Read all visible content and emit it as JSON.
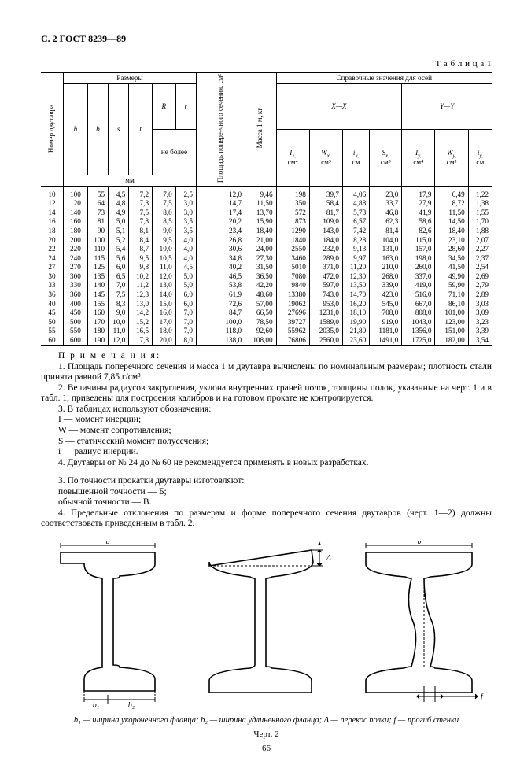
{
  "page": {
    "header": "С. 2 ГОСТ 8239—89",
    "table_label": "Т а б л и ц а  1",
    "fig_caption": "b₁ — ширина укороченного фланца; b₂ — ширина удлиненного фланца; Δ — перекос полки; f — прогиб стенки",
    "fig_no": "Черт. 2",
    "page_no": "66"
  },
  "table_head": {
    "num": "Номер двутавра",
    "dims": "Размеры",
    "h": "h",
    "b": "b",
    "s": "s",
    "t": "t",
    "R": "R",
    "r": "r",
    "not_more": "не более",
    "mm": "мм",
    "area": "Площадь попере-чного сечения, см²",
    "mass": "Масса 1 м, кг",
    "ref": "Справочные значения для осей",
    "xx": "X—X",
    "yy": "Y—Y",
    "Ix": "I",
    "Ix_u": "x,",
    "Ix_s": "см⁴",
    "Wx": "W",
    "Wx_u": "x,",
    "Wx_s": "см³",
    "ix": "i",
    "ix_u": "x,",
    "ix_s": "см",
    "Sx": "S",
    "Sx_u": "x,",
    "Sx_s": "см³",
    "Iy": "I",
    "Iy_u": "y,",
    "Iy_s": "см⁴",
    "Wy": "W",
    "Wy_u": "y,",
    "Wy_s": "см³",
    "iy": "i",
    "iy_u": "y,",
    "iy_s": "см"
  },
  "rows": [
    [
      "10",
      "100",
      "55",
      "4,5",
      "7,2",
      "7,0",
      "2,5",
      "12,0",
      "9,46",
      "198",
      "39,7",
      "4,06",
      "23,0",
      "17,9",
      "6,49",
      "1,22"
    ],
    [
      "12",
      "120",
      "64",
      "4,8",
      "7,3",
      "7,5",
      "3,0",
      "14,7",
      "11,50",
      "350",
      "58,4",
      "4,88",
      "33,7",
      "27,9",
      "8,72",
      "1,38"
    ],
    [
      "14",
      "140",
      "73",
      "4,9",
      "7,5",
      "8,0",
      "3,0",
      "17,4",
      "13,70",
      "572",
      "81,7",
      "5,73",
      "46,8",
      "41,9",
      "11,50",
      "1,55"
    ],
    [
      "16",
      "160",
      "81",
      "5,0",
      "7,8",
      "8,5",
      "3,5",
      "20,2",
      "15,90",
      "873",
      "109,0",
      "6,57",
      "62,3",
      "58,6",
      "14,50",
      "1,70"
    ],
    [
      "18",
      "180",
      "90",
      "5,1",
      "8,1",
      "9,0",
      "3,5",
      "23,4",
      "18,40",
      "1290",
      "143,0",
      "7,42",
      "81,4",
      "82,6",
      "18,40",
      "1,88"
    ],
    [
      "20",
      "200",
      "100",
      "5,2",
      "8,4",
      "9,5",
      "4,0",
      "26,8",
      "21,00",
      "1840",
      "184,0",
      "8,28",
      "104,0",
      "115,0",
      "23,10",
      "2,07"
    ],
    [
      "22",
      "220",
      "110",
      "5,4",
      "8,7",
      "10,0",
      "4,0",
      "30,6",
      "24,00",
      "2550",
      "232,0",
      "9,13",
      "131,0",
      "157,0",
      "28,60",
      "2,27"
    ],
    [
      "24",
      "240",
      "115",
      "5,6",
      "9,5",
      "10,5",
      "4,0",
      "34,8",
      "27,30",
      "3460",
      "289,0",
      "9,97",
      "163,0",
      "198,0",
      "34,50",
      "2,37"
    ],
    [
      "27",
      "270",
      "125",
      "6,0",
      "9,8",
      "11,0",
      "4,5",
      "40,2",
      "31,50",
      "5010",
      "371,0",
      "11,20",
      "210,0",
      "260,0",
      "41,50",
      "2,54"
    ],
    [
      "30",
      "300",
      "135",
      "6,5",
      "10,2",
      "12,0",
      "5,0",
      "46,5",
      "36,50",
      "7080",
      "472,0",
      "12,30",
      "268,0",
      "337,0",
      "49,90",
      "2,69"
    ],
    [
      "33",
      "330",
      "140",
      "7,0",
      "11,2",
      "13,0",
      "5,0",
      "53,8",
      "42,20",
      "9840",
      "597,0",
      "13,50",
      "339,0",
      "419,0",
      "59,90",
      "2,79"
    ],
    [
      "36",
      "360",
      "145",
      "7,5",
      "12,3",
      "14,0",
      "6,0",
      "61,9",
      "48,60",
      "13380",
      "743,0",
      "14,70",
      "423,0",
      "516,0",
      "71,10",
      "2,89"
    ],
    [
      "40",
      "400",
      "155",
      "8,3",
      "13,0",
      "15,0",
      "6,0",
      "72,6",
      "57,00",
      "19062",
      "953,0",
      "16,20",
      "545,0",
      "667,0",
      "86,10",
      "3,03"
    ],
    [
      "45",
      "450",
      "160",
      "9,0",
      "14,2",
      "16,0",
      "7,0",
      "84,7",
      "66,50",
      "27696",
      "1231,0",
      "18,10",
      "708,0",
      "808,0",
      "101,00",
      "3,09"
    ],
    [
      "50",
      "500",
      "170",
      "10,0",
      "15,2",
      "17,0",
      "7,0",
      "100,0",
      "78,50",
      "39727",
      "1589,0",
      "19,90",
      "919,0",
      "1043,0",
      "123,00",
      "3,23"
    ],
    [
      "55",
      "550",
      "180",
      "11,0",
      "16,5",
      "18,0",
      "7,0",
      "118,0",
      "92,60",
      "55962",
      "2035,0",
      "21,80",
      "1181,0",
      "1356,0",
      "151,00",
      "3,39"
    ],
    [
      "60",
      "600",
      "190",
      "12,0",
      "17,8",
      "20,0",
      "8,0",
      "138,0",
      "108,00",
      "76806",
      "2560,0",
      "23,60",
      "1491,0",
      "1725,0",
      "182,00",
      "3,54"
    ]
  ],
  "notes": {
    "pre": "П р и м е ч а н и я:",
    "n1": "1. Площадь поперечного сечения и масса 1 м двутавра вычислены по номинальным размерам; плотность стали принята равной 7,85 г/см³.",
    "n2": "2. Величины радиусов закругления, уклона внутренних граней полок, толщины полок, указанные на черт. 1 и в табл. 1, приведены для построения калибров и на готовом прокате не контролируется.",
    "n3": "3. В таблицах используют обозначения:",
    "d1": "I — момент инерции;",
    "d2": "W — момент сопротивления;",
    "d3": "S — статический момент полусечения;",
    "d4": "i — радиус инерции.",
    "n4": "4. Двутавры от № 24 до № 60 не рекомендуется применять в новых разработках.",
    "p3": "3. По точности прокатки двутавры изготовляют:",
    "p3a": "повышенной точности — Б;",
    "p3b": "обычной точности — В.",
    "p4": "4. Предельные отклонения по размерам и форме поперечного сечения двутавров (черт. 1—2) должны соответствовать приведенным в табл. 2."
  },
  "col_widths": [
    "25",
    "27",
    "23",
    "23",
    "26",
    "26",
    "23",
    "35",
    "34",
    "37",
    "37",
    "30",
    "36",
    "37",
    "37",
    "26"
  ],
  "style": {
    "font_body": 11.5,
    "font_table": 9.2,
    "thick": 2.5
  }
}
